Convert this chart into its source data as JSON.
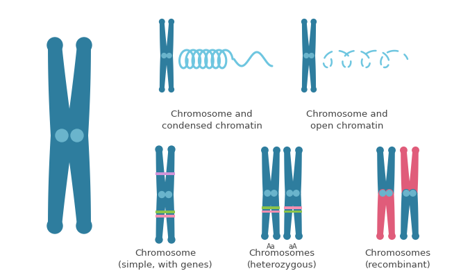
{
  "bg_color": "#ffffff",
  "chrom_color": "#2e7d9e",
  "centromere_color": "#6ab4cc",
  "chrom_color_pink": "#e05c7a",
  "chromatin_color": "#6ec6e0",
  "gene_green": "#8bc34a",
  "gene_pink": "#f48fb1",
  "gene_purple": "#ce93d8",
  "label_color": "#444444",
  "labels": {
    "top_left": "Chromosome and\ncondensed chromatin",
    "top_right": "Chromosome and\nopen chromatin",
    "bot_left": "Chromosome\n(simple, with genes)",
    "bot_mid": "Chromosomes\n(heterozygous)",
    "bot_right": "Chromosomes\n(recombinant)"
  },
  "figsize": [
    6.77,
    3.9
  ],
  "dpi": 100
}
